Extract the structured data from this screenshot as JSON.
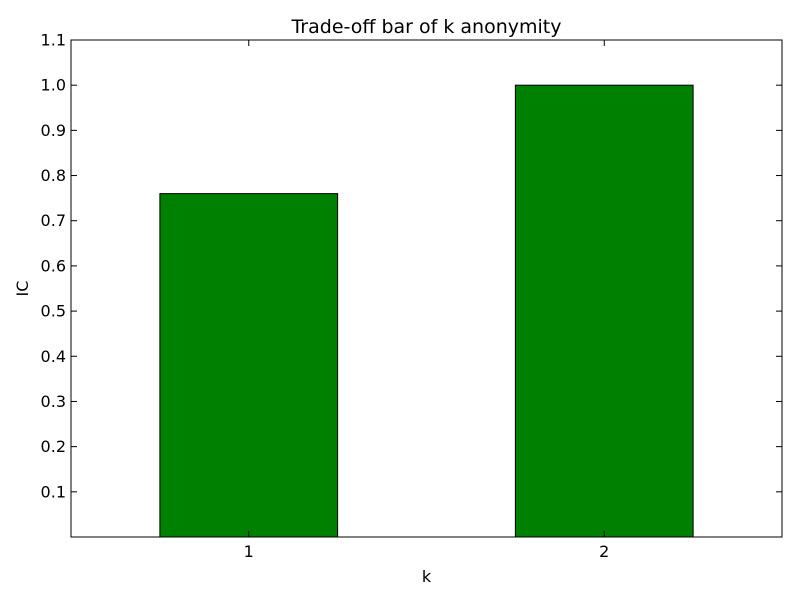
{
  "chart_data": {
    "type": "bar",
    "title": "Trade-off bar of k anonymity",
    "xlabel": "k",
    "ylabel": "IC",
    "categories": [
      "1",
      "2"
    ],
    "values": [
      0.76,
      1.0
    ],
    "ylim": [
      0,
      1.1
    ],
    "yticks": [
      "0.1",
      "0.2",
      "0.3",
      "0.4",
      "0.5",
      "0.6",
      "0.7",
      "0.8",
      "0.9",
      "1.0",
      "1.1"
    ],
    "grid": false,
    "bar_color": "#008000",
    "edge_color": "#000000"
  }
}
